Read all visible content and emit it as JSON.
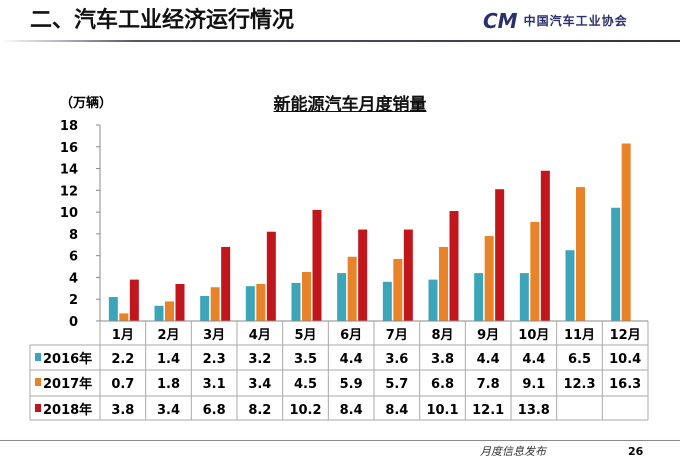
{
  "header": {
    "title": "二、汽车工业经济运行情况",
    "logo_mark": "CM",
    "logo_text": "中国汽车工业协会"
  },
  "footer": {
    "text": "月度信息发布",
    "page": "26"
  },
  "chart_data": {
    "type": "bar",
    "title": "新能源汽车月度销量",
    "ylabel": "（万辆）",
    "ylim": [
      0,
      18
    ],
    "yticks": [
      "0",
      "2",
      "4",
      "6",
      "8",
      "10",
      "12",
      "14",
      "16",
      "18"
    ],
    "categories": [
      "1月",
      "2月",
      "3月",
      "4月",
      "5月",
      "6月",
      "7月",
      "8月",
      "9月",
      "10月",
      "11月",
      "12月"
    ],
    "series": [
      {
        "name": "2016年",
        "color": "#3ca6b8",
        "values": [
          2.2,
          1.4,
          2.3,
          3.2,
          3.5,
          4.4,
          3.6,
          3.8,
          4.4,
          4.4,
          6.5,
          10.4
        ]
      },
      {
        "name": "2017年",
        "color": "#e8832a",
        "values": [
          0.7,
          1.8,
          3.1,
          3.4,
          4.5,
          5.9,
          5.7,
          6.8,
          7.8,
          9.1,
          12.3,
          16.3
        ]
      },
      {
        "name": "2018年",
        "color": "#c0161c",
        "values": [
          3.8,
          3.4,
          6.8,
          8.2,
          10.2,
          8.4,
          8.4,
          10.1,
          12.1,
          13.8,
          null,
          null
        ]
      }
    ]
  }
}
